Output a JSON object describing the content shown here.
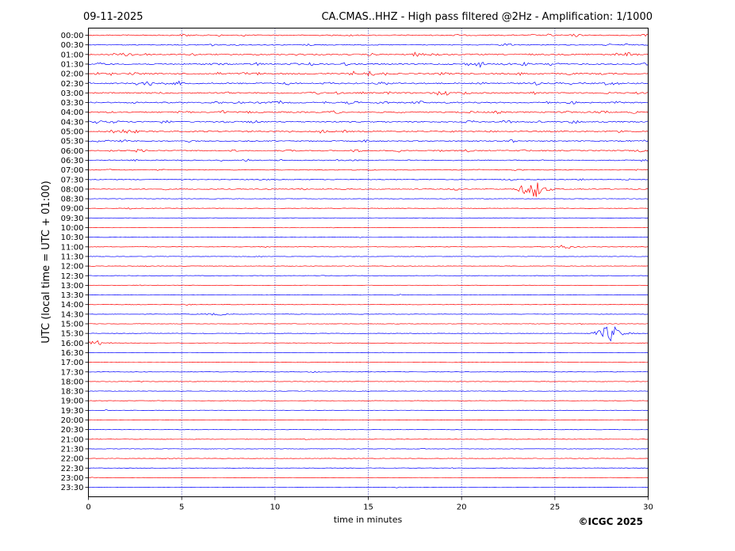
{
  "header": {
    "date": "09-11-2025",
    "title": "CA.CMAS..HHZ - High pass filtered @2Hz - Amplification: 1/1000"
  },
  "footer": {
    "copyright": "©ICGC 2025"
  },
  "colors": {
    "red_trace": "#ff0000",
    "blue_trace": "#0000ff",
    "axis": "#000000",
    "grid": "#0000aa"
  },
  "chart_data": {
    "type": "line",
    "title": "CA.CMAS..HHZ - High pass filtered @2Hz - Amplification: 1/1000",
    "xlabel": "time in minutes",
    "ylabel": "UTC (local time = UTC + 01:00)",
    "xlim": [
      0,
      30
    ],
    "x_ticks": [
      0,
      5,
      10,
      15,
      20,
      25,
      30
    ],
    "x_gridlines": [
      5,
      10,
      15,
      20,
      25
    ],
    "row_labels": [
      "00:00",
      "00:30",
      "01:00",
      "01:30",
      "02:00",
      "02:30",
      "03:00",
      "03:30",
      "04:00",
      "04:30",
      "05:00",
      "05:30",
      "06:00",
      "06:30",
      "07:00",
      "07:30",
      "08:00",
      "08:30",
      "09:00",
      "09:30",
      "10:00",
      "10:30",
      "11:00",
      "11:30",
      "12:00",
      "12:30",
      "13:00",
      "13:30",
      "14:00",
      "14:30",
      "15:00",
      "15:30",
      "16:00",
      "16:30",
      "17:00",
      "17:30",
      "18:00",
      "18:30",
      "19:00",
      "19:30",
      "20:00",
      "20:30",
      "21:00",
      "21:30",
      "22:00",
      "22:30",
      "23:00",
      "23:30"
    ],
    "row_colors": "alternating red (full hour) / blue (half hour)",
    "noise_level": [
      0.55,
      0.45,
      0.8,
      0.8,
      0.85,
      0.85,
      0.8,
      0.75,
      0.8,
      0.75,
      0.7,
      0.55,
      0.6,
      0.45,
      0.35,
      0.3,
      0.35,
      0.1,
      0.05,
      0.05,
      0.05,
      0.05,
      0.05,
      0.05,
      0.05,
      0.05,
      0.05,
      0.05,
      0.05,
      0.05,
      0.05,
      0.05,
      0.05,
      0.05,
      0.05,
      0.05,
      0.05,
      0.05,
      0.05,
      0.05,
      0.05,
      0.05,
      0.05,
      0.05,
      0.05,
      0.05,
      0.05,
      0.05
    ],
    "events": [
      {
        "row": "08:00",
        "minute": 24.0,
        "amplitude": 1.0
      },
      {
        "row": "15:30",
        "minute": 28.1,
        "amplitude": 1.0
      },
      {
        "row": "16:00",
        "minute": 0.6,
        "amplitude": 0.25
      },
      {
        "row": "11:00",
        "minute": 25.7,
        "amplitude": 0.2
      },
      {
        "row": "14:30",
        "minute": 7.0,
        "amplitude": 0.12
      }
    ]
  }
}
